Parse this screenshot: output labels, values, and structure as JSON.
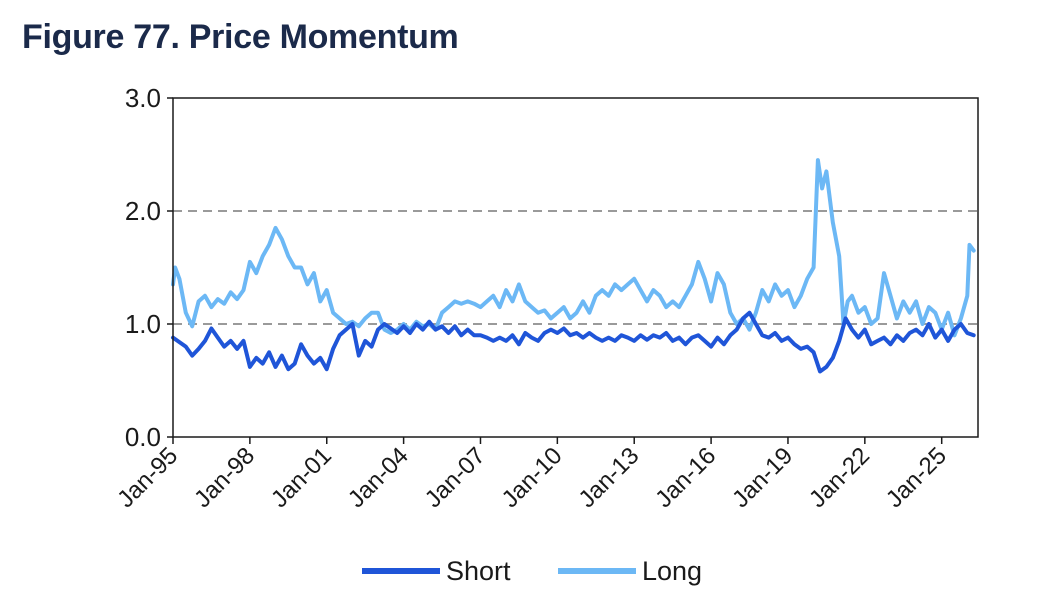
{
  "title": "Figure 77. Price Momentum",
  "chart_data": {
    "type": "line",
    "title": "Figure 77. Price Momentum",
    "xlabel": "",
    "ylabel": "",
    "ylim": [
      0,
      3
    ],
    "xlim": [
      "1995-01",
      "2026-06"
    ],
    "y_ticks": [
      "0.0",
      "1.0",
      "2.0",
      "3.0"
    ],
    "x_ticks": [
      "Jan-95",
      "Jan-98",
      "Jan-01",
      "Jan-04",
      "Jan-07",
      "Jan-10",
      "Jan-13",
      "Jan-16",
      "Jan-19",
      "Jan-22",
      "Jan-25"
    ],
    "grid": "dashed horizontal at 1.0 and 2.0",
    "legend": "bottom",
    "series": [
      {
        "name": "Short",
        "color": "#1f55d8",
        "points": [
          [
            "1995-01",
            0.88
          ],
          [
            "1995-07",
            0.8
          ],
          [
            "1995-10",
            0.72
          ],
          [
            "1996-01",
            0.78
          ],
          [
            "1996-04",
            0.85
          ],
          [
            "1996-07",
            0.96
          ],
          [
            "1996-10",
            0.88
          ],
          [
            "1997-01",
            0.8
          ],
          [
            "1997-04",
            0.85
          ],
          [
            "1997-07",
            0.78
          ],
          [
            "1997-10",
            0.85
          ],
          [
            "1998-01",
            0.62
          ],
          [
            "1998-04",
            0.7
          ],
          [
            "1998-07",
            0.65
          ],
          [
            "1998-10",
            0.75
          ],
          [
            "1999-01",
            0.62
          ],
          [
            "1999-04",
            0.72
          ],
          [
            "1999-07",
            0.6
          ],
          [
            "1999-10",
            0.65
          ],
          [
            "2000-01",
            0.82
          ],
          [
            "2000-04",
            0.72
          ],
          [
            "2000-07",
            0.65
          ],
          [
            "2000-10",
            0.7
          ],
          [
            "2001-01",
            0.6
          ],
          [
            "2001-04",
            0.78
          ],
          [
            "2001-07",
            0.9
          ],
          [
            "2001-10",
            0.95
          ],
          [
            "2002-01",
            1.0
          ],
          [
            "2002-04",
            0.72
          ],
          [
            "2002-07",
            0.85
          ],
          [
            "2002-10",
            0.8
          ],
          [
            "2003-01",
            0.95
          ],
          [
            "2003-04",
            1.0
          ],
          [
            "2003-07",
            0.96
          ],
          [
            "2003-10",
            0.92
          ],
          [
            "2004-01",
            0.98
          ],
          [
            "2004-04",
            0.92
          ],
          [
            "2004-07",
            1.0
          ],
          [
            "2004-10",
            0.95
          ],
          [
            "2005-01",
            1.02
          ],
          [
            "2005-04",
            0.95
          ],
          [
            "2005-07",
            0.98
          ],
          [
            "2005-10",
            0.92
          ],
          [
            "2006-01",
            0.98
          ],
          [
            "2006-04",
            0.9
          ],
          [
            "2006-07",
            0.95
          ],
          [
            "2006-10",
            0.9
          ],
          [
            "2007-01",
            0.9
          ],
          [
            "2007-04",
            0.88
          ],
          [
            "2007-07",
            0.85
          ],
          [
            "2007-10",
            0.88
          ],
          [
            "2008-01",
            0.85
          ],
          [
            "2008-04",
            0.9
          ],
          [
            "2008-07",
            0.82
          ],
          [
            "2008-10",
            0.92
          ],
          [
            "2009-01",
            0.88
          ],
          [
            "2009-04",
            0.85
          ],
          [
            "2009-07",
            0.92
          ],
          [
            "2009-10",
            0.95
          ],
          [
            "2010-01",
            0.92
          ],
          [
            "2010-04",
            0.96
          ],
          [
            "2010-07",
            0.9
          ],
          [
            "2010-10",
            0.92
          ],
          [
            "2011-01",
            0.88
          ],
          [
            "2011-04",
            0.92
          ],
          [
            "2011-07",
            0.88
          ],
          [
            "2011-10",
            0.85
          ],
          [
            "2012-01",
            0.88
          ],
          [
            "2012-04",
            0.85
          ],
          [
            "2012-07",
            0.9
          ],
          [
            "2012-10",
            0.88
          ],
          [
            "2013-01",
            0.85
          ],
          [
            "2013-04",
            0.9
          ],
          [
            "2013-07",
            0.86
          ],
          [
            "2013-10",
            0.9
          ],
          [
            "2014-01",
            0.88
          ],
          [
            "2014-04",
            0.92
          ],
          [
            "2014-07",
            0.85
          ],
          [
            "2014-10",
            0.88
          ],
          [
            "2015-01",
            0.82
          ],
          [
            "2015-04",
            0.88
          ],
          [
            "2015-07",
            0.9
          ],
          [
            "2015-10",
            0.85
          ],
          [
            "2016-01",
            0.8
          ],
          [
            "2016-04",
            0.88
          ],
          [
            "2016-07",
            0.82
          ],
          [
            "2016-10",
            0.9
          ],
          [
            "2017-01",
            0.95
          ],
          [
            "2017-04",
            1.05
          ],
          [
            "2017-07",
            1.1
          ],
          [
            "2017-10",
            1.0
          ],
          [
            "2018-01",
            0.9
          ],
          [
            "2018-04",
            0.88
          ],
          [
            "2018-07",
            0.92
          ],
          [
            "2018-10",
            0.85
          ],
          [
            "2019-01",
            0.88
          ],
          [
            "2019-04",
            0.82
          ],
          [
            "2019-07",
            0.78
          ],
          [
            "2019-10",
            0.8
          ],
          [
            "2020-01",
            0.75
          ],
          [
            "2020-04",
            0.58
          ],
          [
            "2020-07",
            0.62
          ],
          [
            "2020-10",
            0.7
          ],
          [
            "2021-01",
            0.85
          ],
          [
            "2021-04",
            1.05
          ],
          [
            "2021-07",
            0.95
          ],
          [
            "2021-10",
            0.88
          ],
          [
            "2022-01",
            0.95
          ],
          [
            "2022-04",
            0.82
          ],
          [
            "2022-07",
            0.85
          ],
          [
            "2022-10",
            0.88
          ],
          [
            "2023-01",
            0.82
          ],
          [
            "2023-04",
            0.9
          ],
          [
            "2023-07",
            0.85
          ],
          [
            "2023-10",
            0.92
          ],
          [
            "2024-01",
            0.95
          ],
          [
            "2024-04",
            0.9
          ],
          [
            "2024-07",
            1.0
          ],
          [
            "2024-10",
            0.88
          ],
          [
            "2025-01",
            0.95
          ],
          [
            "2025-04",
            0.85
          ],
          [
            "2025-07",
            0.95
          ],
          [
            "2025-10",
            1.0
          ],
          [
            "2026-01",
            0.92
          ],
          [
            "2026-04",
            0.9
          ]
        ]
      },
      {
        "name": "Long",
        "color": "#6cb8f5",
        "points": [
          [
            "1995-01",
            1.35
          ],
          [
            "1995-02",
            1.5
          ],
          [
            "1995-04",
            1.4
          ],
          [
            "1995-07",
            1.1
          ],
          [
            "1995-10",
            0.98
          ],
          [
            "1996-01",
            1.2
          ],
          [
            "1996-04",
            1.25
          ],
          [
            "1996-07",
            1.15
          ],
          [
            "1996-10",
            1.22
          ],
          [
            "1997-01",
            1.18
          ],
          [
            "1997-04",
            1.28
          ],
          [
            "1997-07",
            1.22
          ],
          [
            "1997-10",
            1.3
          ],
          [
            "1998-01",
            1.55
          ],
          [
            "1998-04",
            1.45
          ],
          [
            "1998-07",
            1.6
          ],
          [
            "1998-10",
            1.7
          ],
          [
            "1999-01",
            1.85
          ],
          [
            "1999-04",
            1.75
          ],
          [
            "1999-07",
            1.6
          ],
          [
            "1999-10",
            1.5
          ],
          [
            "2000-01",
            1.5
          ],
          [
            "2000-04",
            1.35
          ],
          [
            "2000-07",
            1.45
          ],
          [
            "2000-10",
            1.2
          ],
          [
            "2001-01",
            1.3
          ],
          [
            "2001-04",
            1.1
          ],
          [
            "2001-07",
            1.05
          ],
          [
            "2001-10",
            1.0
          ],
          [
            "2002-01",
            1.02
          ],
          [
            "2002-04",
            0.98
          ],
          [
            "2002-07",
            1.05
          ],
          [
            "2002-10",
            1.1
          ],
          [
            "2003-01",
            1.1
          ],
          [
            "2003-04",
            0.95
          ],
          [
            "2003-07",
            0.92
          ],
          [
            "2003-10",
            0.95
          ],
          [
            "2004-01",
            1.0
          ],
          [
            "2004-04",
            0.95
          ],
          [
            "2004-07",
            1.02
          ],
          [
            "2004-10",
            0.98
          ],
          [
            "2005-01",
            1.0
          ],
          [
            "2005-04",
            0.95
          ],
          [
            "2005-07",
            1.1
          ],
          [
            "2005-10",
            1.15
          ],
          [
            "2006-01",
            1.2
          ],
          [
            "2006-04",
            1.18
          ],
          [
            "2006-07",
            1.2
          ],
          [
            "2006-10",
            1.18
          ],
          [
            "2007-01",
            1.15
          ],
          [
            "2007-04",
            1.2
          ],
          [
            "2007-07",
            1.25
          ],
          [
            "2007-10",
            1.15
          ],
          [
            "2008-01",
            1.3
          ],
          [
            "2008-04",
            1.2
          ],
          [
            "2008-07",
            1.35
          ],
          [
            "2008-10",
            1.2
          ],
          [
            "2009-01",
            1.15
          ],
          [
            "2009-04",
            1.1
          ],
          [
            "2009-07",
            1.12
          ],
          [
            "2009-10",
            1.05
          ],
          [
            "2010-01",
            1.1
          ],
          [
            "2010-04",
            1.15
          ],
          [
            "2010-07",
            1.05
          ],
          [
            "2010-10",
            1.1
          ],
          [
            "2011-01",
            1.2
          ],
          [
            "2011-04",
            1.1
          ],
          [
            "2011-07",
            1.25
          ],
          [
            "2011-10",
            1.3
          ],
          [
            "2012-01",
            1.25
          ],
          [
            "2012-04",
            1.35
          ],
          [
            "2012-07",
            1.3
          ],
          [
            "2012-10",
            1.35
          ],
          [
            "2013-01",
            1.4
          ],
          [
            "2013-04",
            1.3
          ],
          [
            "2013-07",
            1.2
          ],
          [
            "2013-10",
            1.3
          ],
          [
            "2014-01",
            1.25
          ],
          [
            "2014-04",
            1.15
          ],
          [
            "2014-07",
            1.2
          ],
          [
            "2014-10",
            1.15
          ],
          [
            "2015-01",
            1.25
          ],
          [
            "2015-04",
            1.35
          ],
          [
            "2015-07",
            1.55
          ],
          [
            "2015-10",
            1.4
          ],
          [
            "2016-01",
            1.2
          ],
          [
            "2016-04",
            1.45
          ],
          [
            "2016-07",
            1.35
          ],
          [
            "2016-10",
            1.1
          ],
          [
            "2017-01",
            1.0
          ],
          [
            "2017-04",
            1.05
          ],
          [
            "2017-07",
            0.95
          ],
          [
            "2017-10",
            1.1
          ],
          [
            "2018-01",
            1.3
          ],
          [
            "2018-04",
            1.2
          ],
          [
            "2018-07",
            1.35
          ],
          [
            "2018-10",
            1.25
          ],
          [
            "2019-01",
            1.3
          ],
          [
            "2019-04",
            1.15
          ],
          [
            "2019-07",
            1.25
          ],
          [
            "2019-10",
            1.4
          ],
          [
            "2020-01",
            1.5
          ],
          [
            "2020-03",
            2.45
          ],
          [
            "2020-05",
            2.2
          ],
          [
            "2020-07",
            2.35
          ],
          [
            "2020-10",
            1.9
          ],
          [
            "2021-01",
            1.6
          ],
          [
            "2021-03",
            1.0
          ],
          [
            "2021-05",
            1.2
          ],
          [
            "2021-07",
            1.25
          ],
          [
            "2021-10",
            1.1
          ],
          [
            "2022-01",
            1.15
          ],
          [
            "2022-04",
            1.0
          ],
          [
            "2022-07",
            1.05
          ],
          [
            "2022-10",
            1.45
          ],
          [
            "2023-01",
            1.25
          ],
          [
            "2023-04",
            1.05
          ],
          [
            "2023-07",
            1.2
          ],
          [
            "2023-10",
            1.1
          ],
          [
            "2024-01",
            1.2
          ],
          [
            "2024-04",
            1.0
          ],
          [
            "2024-07",
            1.15
          ],
          [
            "2024-10",
            1.1
          ],
          [
            "2025-01",
            0.95
          ],
          [
            "2025-04",
            1.1
          ],
          [
            "2025-07",
            0.9
          ],
          [
            "2025-10",
            1.05
          ],
          [
            "2026-01",
            1.25
          ],
          [
            "2026-02",
            1.7
          ],
          [
            "2026-04",
            1.65
          ]
        ]
      }
    ]
  }
}
